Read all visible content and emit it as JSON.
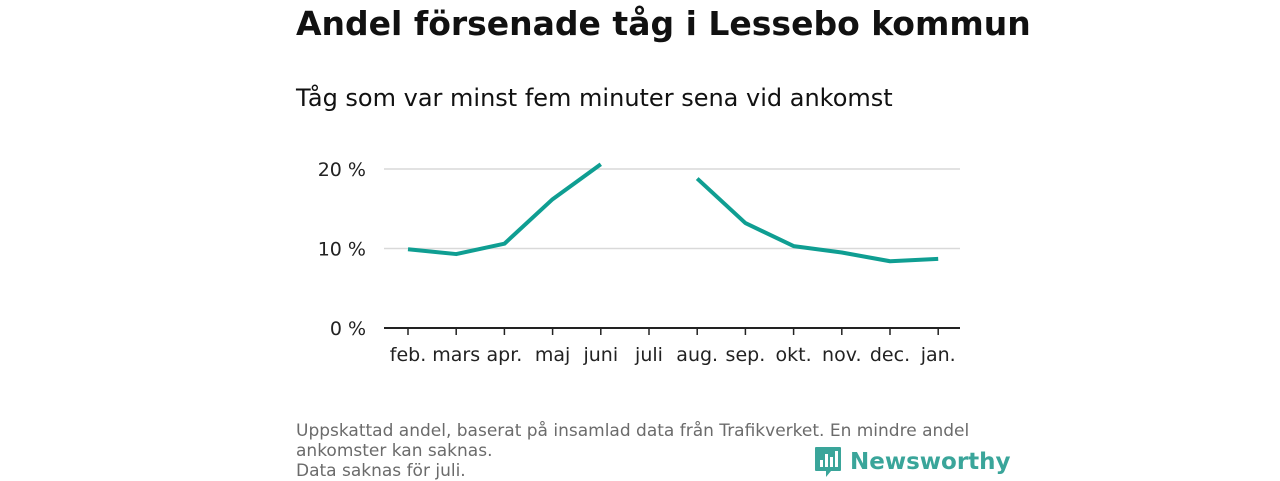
{
  "title": "Andel försenade tåg i Lessebo kommun",
  "subtitle": "Tåg som var minst fem minuter sena vid ankomst",
  "footnote": {
    "line1": "Uppskattad andel, baserat på insamlad data från Trafikverket. En mindre andel",
    "line2": "ankomster kan saknas.",
    "line3": "Data saknas för juli."
  },
  "brand": {
    "name": "Newsworthy",
    "icon": "bar-chart-speech-bubble-icon",
    "color": "#3aa59a"
  },
  "colors": {
    "line": "#0f9e92",
    "grid": "#d9d9d9",
    "axis": "#222222"
  },
  "chart_data": {
    "type": "line",
    "title": "Andel försenade tåg i Lessebo kommun",
    "subtitle": "Tåg som var minst fem minuter sena vid ankomst",
    "categories": [
      "feb.",
      "mars",
      "apr.",
      "maj",
      "juni",
      "juli",
      "aug.",
      "sep.",
      "okt.",
      "nov.",
      "dec.",
      "jan."
    ],
    "series": [
      {
        "values": [
          9.9,
          9.3,
          10.6,
          16.2,
          20.6,
          null,
          18.8,
          13.2,
          10.3,
          9.5,
          8.4,
          8.7
        ]
      }
    ],
    "yticks": [
      0,
      10,
      20
    ],
    "ytick_labels": [
      "0 %",
      "10 %",
      "20 %"
    ],
    "ylim": [
      0,
      20
    ],
    "grid": true,
    "legend": "none"
  }
}
